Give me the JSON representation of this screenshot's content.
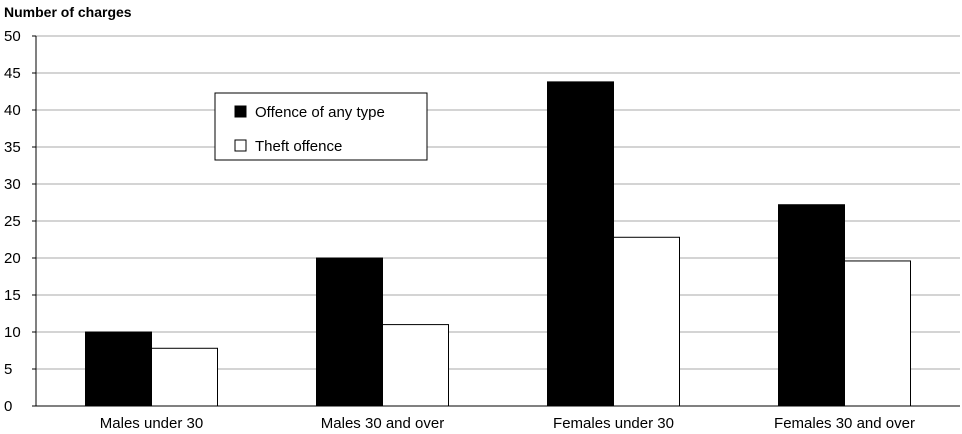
{
  "chart_data": {
    "type": "bar",
    "title": "",
    "xlabel": "",
    "ylabel": "Number of charges",
    "ylim": [
      0,
      50
    ],
    "yticks": [
      0,
      5,
      10,
      15,
      20,
      25,
      30,
      35,
      40,
      45,
      50
    ],
    "grid": true,
    "legend_position": "top-left",
    "categories": [
      "Males under 30",
      "Males 30 and over",
      "Females under 30",
      "Females 30 and over"
    ],
    "series": [
      {
        "name": "Offence of any type",
        "color": "#000000",
        "values": [
          10,
          20,
          43.8,
          27.2
        ]
      },
      {
        "name": "Theft offence",
        "color": "#ffffff",
        "values": [
          7.8,
          11,
          22.8,
          19.6
        ]
      }
    ]
  }
}
